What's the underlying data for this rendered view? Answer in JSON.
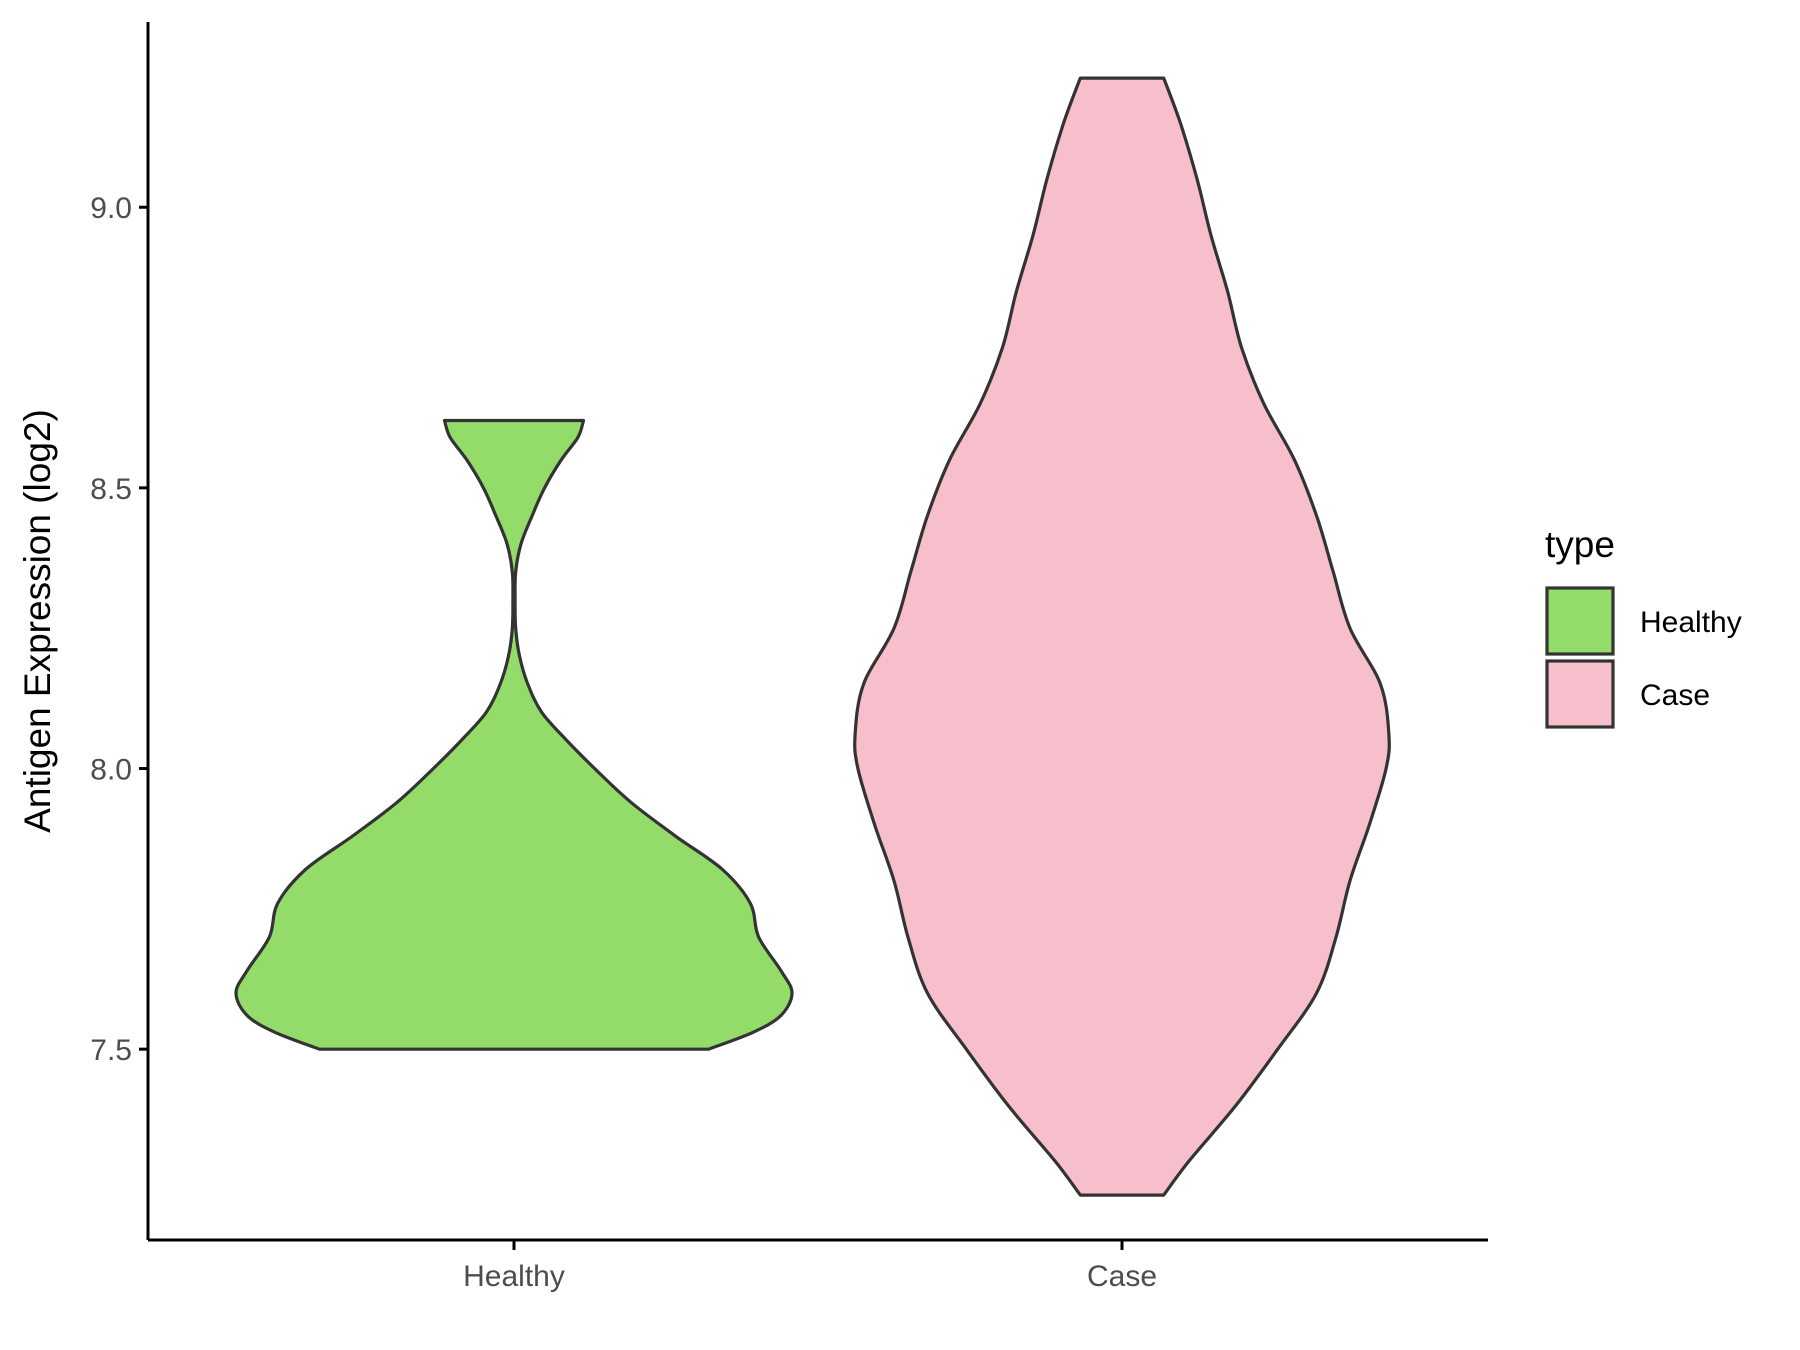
{
  "chart_data": {
    "type": "violin",
    "title": "",
    "xlabel": "",
    "ylabel": "Antigen Expression (log2)",
    "ylim": [
      7.16,
      9.33
    ],
    "yticks": [
      7.5,
      8.0,
      8.5,
      9.0
    ],
    "ytick_labels": [
      "7.5",
      "8.0",
      "8.5",
      "9.0"
    ],
    "categories": [
      "Healthy",
      "Case"
    ],
    "grid": false,
    "legend": {
      "title": "type",
      "position": "right",
      "entries": [
        "Healthy",
        "Case"
      ]
    },
    "series": [
      {
        "name": "Healthy",
        "color": "#93dc6a",
        "min": 7.5,
        "max": 8.62,
        "density_profile": [
          [
            7.5,
            0.7
          ],
          [
            7.53,
            0.86
          ],
          [
            7.56,
            0.96
          ],
          [
            7.6,
            1.0
          ],
          [
            7.64,
            0.96
          ],
          [
            7.7,
            0.88
          ],
          [
            7.76,
            0.85
          ],
          [
            7.82,
            0.75
          ],
          [
            7.88,
            0.58
          ],
          [
            7.94,
            0.42
          ],
          [
            8.0,
            0.29
          ],
          [
            8.05,
            0.19
          ],
          [
            8.1,
            0.1
          ],
          [
            8.15,
            0.05
          ],
          [
            8.2,
            0.02
          ],
          [
            8.25,
            0.006
          ],
          [
            8.3,
            0.004
          ],
          [
            8.35,
            0.006
          ],
          [
            8.4,
            0.025
          ],
          [
            8.45,
            0.065
          ],
          [
            8.5,
            0.11
          ],
          [
            8.55,
            0.17
          ],
          [
            8.59,
            0.23
          ],
          [
            8.62,
            0.25
          ]
        ]
      },
      {
        "name": "Case",
        "color": "#f7bfcb",
        "min": 7.24,
        "max": 9.23,
        "density_profile": [
          [
            7.24,
            0.15
          ],
          [
            7.3,
            0.24
          ],
          [
            7.4,
            0.41
          ],
          [
            7.5,
            0.56
          ],
          [
            7.6,
            0.7
          ],
          [
            7.7,
            0.77
          ],
          [
            7.8,
            0.82
          ],
          [
            7.9,
            0.89
          ],
          [
            8.0,
            0.95
          ],
          [
            8.06,
            0.96
          ],
          [
            8.15,
            0.93
          ],
          [
            8.25,
            0.82
          ],
          [
            8.35,
            0.76
          ],
          [
            8.45,
            0.7
          ],
          [
            8.55,
            0.62
          ],
          [
            8.65,
            0.51
          ],
          [
            8.75,
            0.43
          ],
          [
            8.85,
            0.38
          ],
          [
            8.95,
            0.32
          ],
          [
            9.05,
            0.27
          ],
          [
            9.15,
            0.21
          ],
          [
            9.23,
            0.15
          ]
        ]
      }
    ]
  }
}
